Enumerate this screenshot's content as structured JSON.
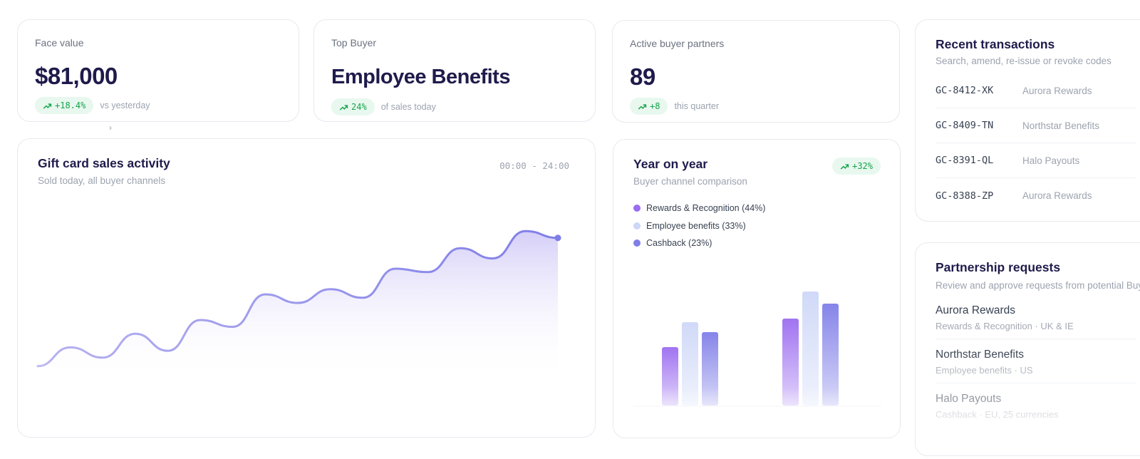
{
  "stats": [
    {
      "label": "Face value",
      "value": "$81,000",
      "delta": "+18.4%",
      "note": "vs yesterday"
    },
    {
      "label": "Top Buyer",
      "value": "Employee Benefits",
      "delta": "24%",
      "note": "of sales today"
    },
    {
      "label": "Active buyer partners",
      "value": "89",
      "delta": "+8",
      "note": "this quarter"
    }
  ],
  "activity": {
    "title": "Gift card sales activity",
    "subtitle": "Sold today, all buyer channels",
    "range": "00:00 - 24:00"
  },
  "yoy": {
    "title": "Year on year",
    "subtitle": "Buyer channel comparison",
    "badge": "+32%",
    "legend": [
      {
        "label": "Rewards & Recognition (44%)",
        "color": "#9b6cf0"
      },
      {
        "label": "Employee benefits (33%)",
        "color": "#cdd7f7"
      },
      {
        "label": "Cashback (23%)",
        "color": "#7f7ee8"
      }
    ]
  },
  "transactions": {
    "title": "Recent transactions",
    "subtitle": "Search, amend, re-issue or revoke codes",
    "rows": [
      {
        "code": "GC-8412-XK",
        "name": "Aurora Rewards"
      },
      {
        "code": "GC-8409-TN",
        "name": "Northstar Benefits"
      },
      {
        "code": "GC-8391-QL",
        "name": "Halo Payouts"
      },
      {
        "code": "GC-8388-ZP",
        "name": "Aurora Rewards"
      }
    ]
  },
  "partners": {
    "title": "Partnership requests",
    "subtitle": "Review and approve requests from potential Buy",
    "requests": [
      {
        "name": "Aurora Rewards",
        "meta": "Rewards & Recognition · UK & IE"
      },
      {
        "name": "Northstar Benefits",
        "meta": "Employee benefits · US"
      },
      {
        "name": "Halo Payouts",
        "meta": "Cashback · EU, 25 currencies"
      }
    ]
  },
  "chart_data": [
    {
      "type": "area",
      "x": [
        0,
        1,
        2,
        3,
        4,
        5,
        6,
        7,
        8,
        9,
        10,
        11,
        12,
        13,
        14,
        15,
        16
      ],
      "series": [
        {
          "values": [
            3,
            14,
            8,
            22,
            12,
            30,
            26,
            45,
            40,
            48,
            43,
            60,
            58,
            72,
            66,
            82,
            78
          ]
        }
      ],
      "colors": [
        "#7f7ee8"
      ]
    },
    {
      "type": "bar",
      "series": [
        {
          "name": "Rewards & Recognition (44%)",
          "values": [
            82,
            122
          ]
        },
        {
          "name": "Employee benefits (33%)",
          "values": [
            117,
            160
          ]
        },
        {
          "name": "Cashback (23%)",
          "values": [
            103,
            143
          ]
        }
      ],
      "colors": [
        "#9b6cf0",
        "#cdd7f7",
        "#7f7ee8"
      ]
    }
  ]
}
